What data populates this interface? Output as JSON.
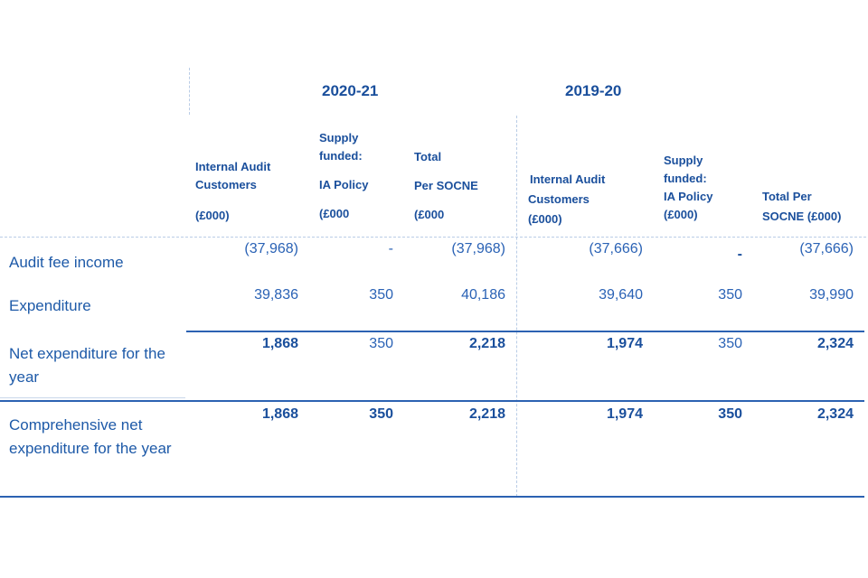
{
  "years": {
    "current": "2020-21",
    "prior": "2019-20"
  },
  "headers": {
    "current": [
      [
        "Internal Audit",
        "Customers",
        "",
        "(£000)"
      ],
      [
        "Supply",
        "funded:",
        "",
        "IA Policy",
        "",
        "(£000"
      ],
      [
        "Total",
        "",
        "Per SOCNE",
        "",
        "(£000"
      ]
    ],
    "prior": [
      [
        "Internal Audit",
        "Customers",
        "(£000)"
      ],
      [
        "Supply",
        "funded:",
        "IA Policy",
        "(£000)"
      ],
      [
        "Total Per",
        "SOCNE (£000)"
      ]
    ]
  },
  "rows": [
    {
      "label": "Audit fee income",
      "values": [
        "(37,968)",
        "-",
        "(37,968)",
        "(37,666)",
        "-",
        "(37,666)"
      ]
    },
    {
      "label": "Expenditure",
      "values": [
        "39,836",
        "350",
        "40,186",
        "39,640",
        "350",
        "39,990"
      ]
    },
    {
      "label": "Net expenditure for the year",
      "values": [
        "1,868",
        "350",
        "2,218",
        "1,974",
        "350",
        "2,324"
      ]
    },
    {
      "label": "Comprehensive net expenditure for the year",
      "values": [
        "1,868",
        "350",
        "2,218",
        "1,974",
        "350",
        "2,324"
      ]
    }
  ]
}
